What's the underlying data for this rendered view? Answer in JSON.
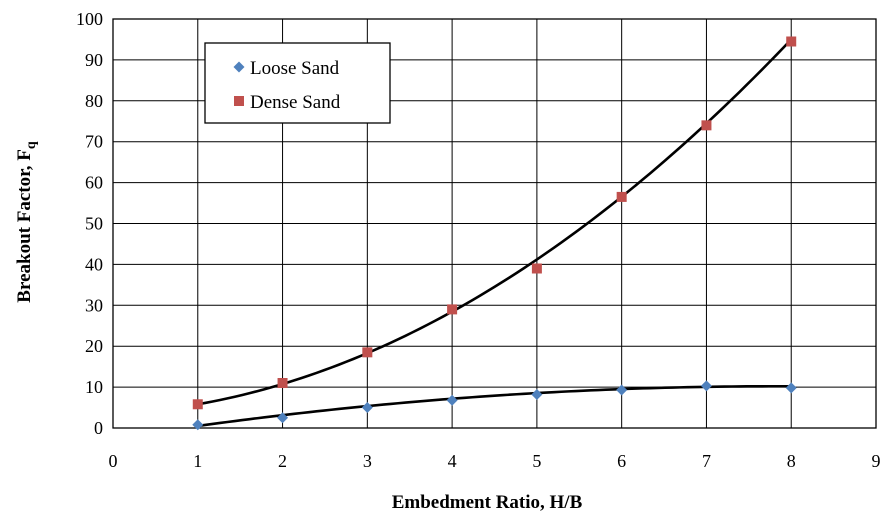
{
  "chart_data": {
    "type": "scatter",
    "title": "",
    "xlabel": "Embedment Ratio, H/B",
    "ylabel": "Breakout Factor, F",
    "ylabel_subscript": "q",
    "xlim": [
      0,
      9
    ],
    "ylim": [
      0,
      100
    ],
    "xticks": [
      0,
      1,
      2,
      3,
      4,
      5,
      6,
      7,
      8,
      9
    ],
    "yticks": [
      0,
      10,
      20,
      30,
      40,
      50,
      60,
      70,
      80,
      90,
      100
    ],
    "grid": true,
    "legend_position": "top-left",
    "series": [
      {
        "name": "Loose Sand",
        "marker": "diamond",
        "color": "#4f81bd",
        "x": [
          1,
          2,
          3,
          4,
          5,
          6,
          7,
          8
        ],
        "y": [
          0.8,
          2.5,
          5.0,
          6.8,
          8.2,
          9.3,
          10.3,
          9.8
        ],
        "trendline": {
          "type": "poly2",
          "x": [
            1,
            4.5,
            8
          ],
          "y": [
            0.5,
            7.9,
            10.2
          ]
        }
      },
      {
        "name": "Dense Sand",
        "marker": "square",
        "color": "#c0504d",
        "x": [
          1,
          2,
          3,
          4,
          5,
          6,
          7,
          8
        ],
        "y": [
          5.8,
          11.0,
          18.5,
          29.0,
          39.0,
          56.5,
          74.0,
          94.5
        ],
        "trendline": {
          "type": "poly2",
          "x": [
            1,
            4.5,
            8
          ],
          "y": [
            5.8,
            34.5,
            95.0
          ]
        }
      }
    ]
  }
}
